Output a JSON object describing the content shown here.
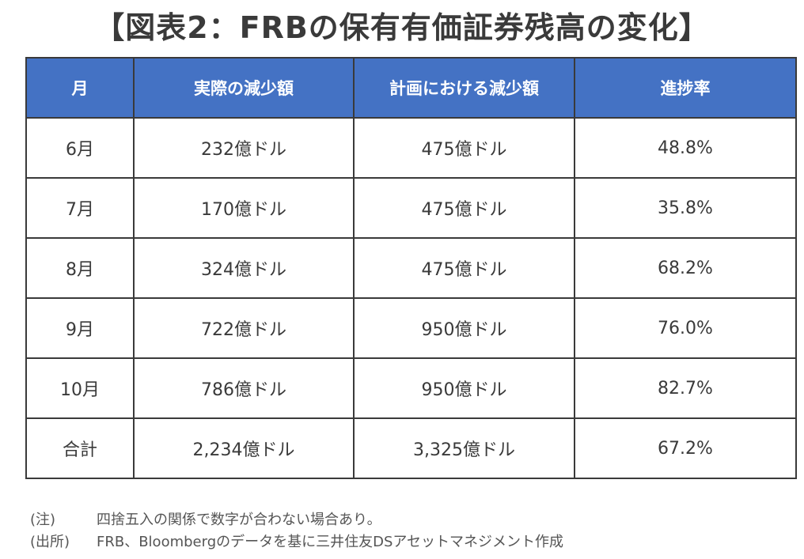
{
  "title": "【図表2：FRBの保有有価証券残高の変化】",
  "chart_data": {
    "type": "table",
    "title": "【図表2：FRBの保有有価証券残高の変化】",
    "columns": [
      "月",
      "実際の減少額",
      "計画における減少額",
      "進捗率"
    ],
    "rows": [
      [
        "6月",
        "232億ドル",
        "475億ドル",
        "48.8%"
      ],
      [
        "7月",
        "170億ドル",
        "475億ドル",
        "35.8%"
      ],
      [
        "8月",
        "324億ドル",
        "475億ドル",
        "68.2%"
      ],
      [
        "9月",
        "722億ドル",
        "950億ドル",
        "76.0%"
      ],
      [
        "10月",
        "786億ドル",
        "950億ドル",
        "82.7%"
      ],
      [
        "合計",
        "2,234億ドル",
        "3,325億ドル",
        "67.2%"
      ]
    ]
  },
  "colors": {
    "header_bg": "#4472c4",
    "header_text": "#ffffff",
    "border": "#3a3a3a"
  },
  "notes": [
    {
      "label": "(注)",
      "text": "四捨五入の関係で数字が合わない場合あり。"
    },
    {
      "label": "(出所)",
      "text": "FRB、Bloombergのデータを基に三井住友DSアセットマネジメント作成"
    }
  ]
}
